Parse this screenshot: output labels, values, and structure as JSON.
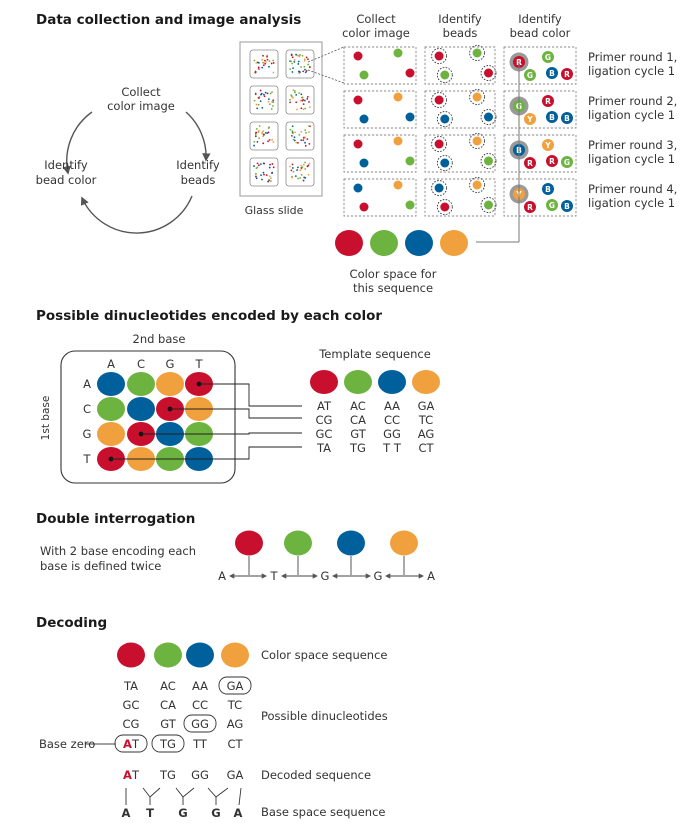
{
  "colors": {
    "red": "#c8102e",
    "green": "#6db33f",
    "blue": "#00609c",
    "orange": "#f0a03c"
  },
  "section1": {
    "title": "Data collection and image analysis",
    "cycle": {
      "top": [
        "Collect",
        "color image"
      ],
      "left": [
        "Identify",
        "bead color"
      ],
      "right": [
        "Identify",
        "beads"
      ]
    },
    "slide_label": "Glass slide",
    "col_headers": [
      [
        "Collect",
        "color image"
      ],
      [
        "Identify",
        "beads"
      ],
      [
        "Identify",
        "bead color"
      ]
    ],
    "rounds": [
      {
        "line1": "Primer round 1,",
        "line2": "ligation cycle 1",
        "tag": "R",
        "letters": [
          "G",
          "G",
          "B",
          "R"
        ]
      },
      {
        "line1": "Primer round 2,",
        "line2": "ligation cycle 1",
        "tag": "G",
        "letters": [
          "R",
          "Y",
          "B",
          "B"
        ]
      },
      {
        "line1": "Primer round 3,",
        "line2": "ligation cycle 1",
        "tag": "B",
        "letters": [
          "Y",
          "R",
          "R",
          "G"
        ]
      },
      {
        "line1": "Primer round 4,",
        "line2": "ligation cycle 1",
        "tag": "Y",
        "letters": [
          "B",
          "R",
          "G",
          "B"
        ]
      }
    ],
    "color_space_caption": [
      "Color space for",
      "this sequence"
    ]
  },
  "section2": {
    "title": "Possible dinucleotides encoded by each color",
    "second_base": "2nd base",
    "first_base": "1st base",
    "bases": [
      "A",
      "C",
      "G",
      "T"
    ],
    "template_label": "Template sequence",
    "columns": [
      [
        "AT",
        "CG",
        "GC",
        "TA"
      ],
      [
        "AC",
        "CA",
        "GT",
        "TG"
      ],
      [
        "AA",
        "CC",
        "GG",
        "T T"
      ],
      [
        "GA",
        "TC",
        "AG",
        "CT"
      ]
    ]
  },
  "section3": {
    "title": "Double  interrogation",
    "desc": [
      "With 2 base encoding each",
      "base is defined twice"
    ],
    "bases": [
      "A",
      "T",
      "G",
      "G",
      "A"
    ]
  },
  "section4": {
    "title": "Decoding",
    "color_space_label": "Color space sequence",
    "columns": [
      [
        "TA",
        "GC",
        "CG",
        "AT"
      ],
      [
        "AC",
        "CA",
        "GT",
        "TG"
      ],
      [
        "AA",
        "CC",
        "GG",
        "TT"
      ],
      [
        "GA",
        "TC",
        "AG",
        "CT"
      ]
    ],
    "possible_label": "Possible dinucleotides",
    "base_zero": "Base zero",
    "decoded": [
      "AT",
      "TG",
      "GG",
      "GA"
    ],
    "decoded_label": "Decoded sequence",
    "base_space": [
      "A",
      "T",
      "G",
      "G",
      "A"
    ],
    "base_space_label": "Base space sequence"
  }
}
